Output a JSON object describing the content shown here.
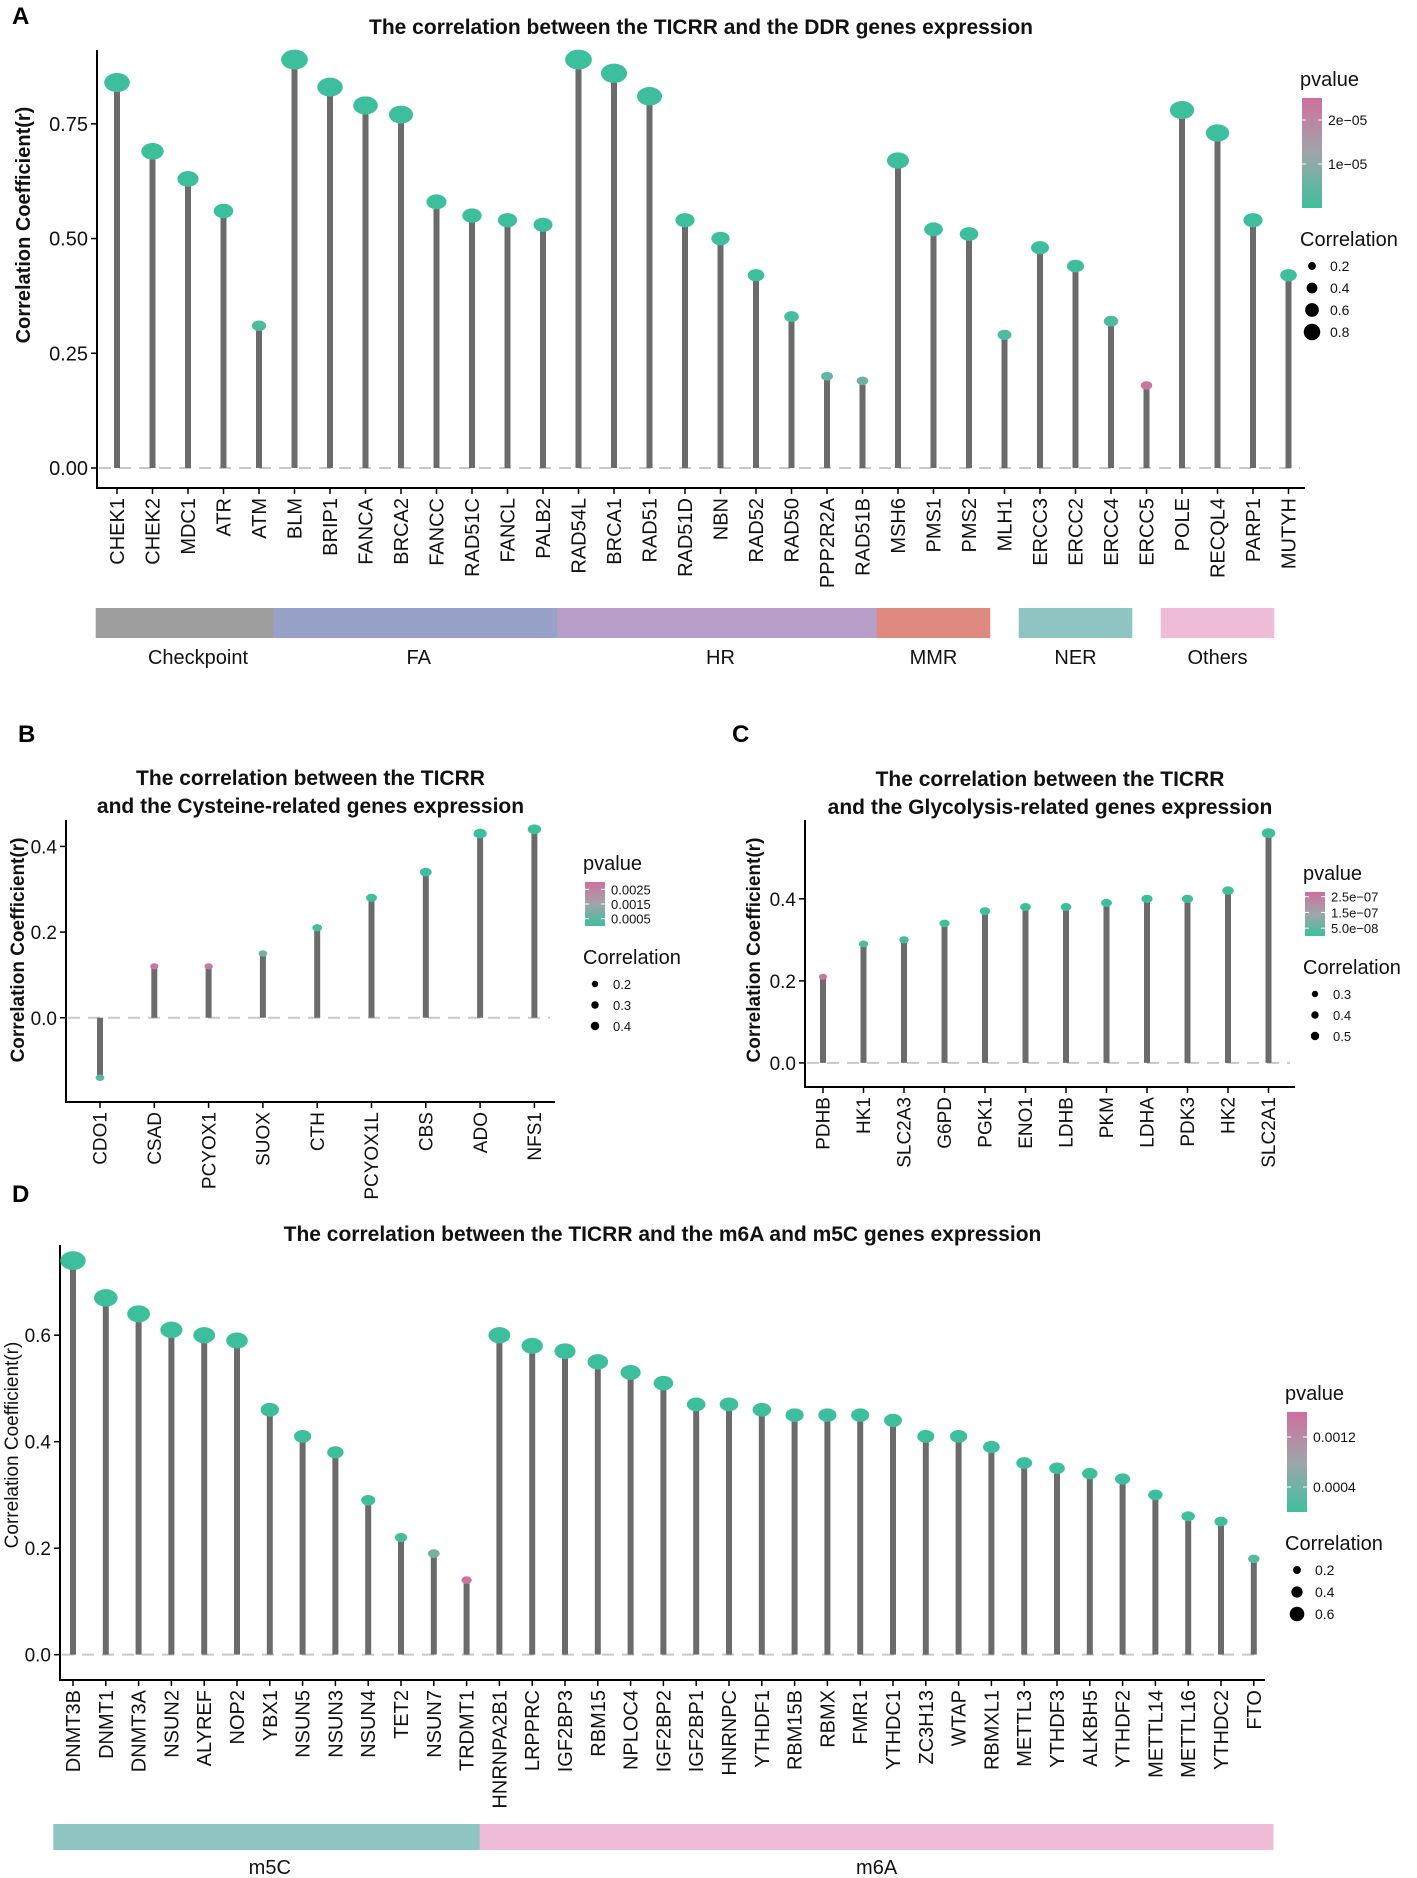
{
  "chart_data": [
    {
      "panel": "A",
      "type": "lollipop",
      "title": "The correlation between the TICRR and the DDR genes expression",
      "ylabel": "Correlation Coefficient(r)",
      "ylim": [
        0,
        0.9
      ],
      "yticks": [
        0,
        0.25,
        0.5,
        0.75
      ],
      "ytick_labels": [
        "0.00",
        "0.25",
        "0.50",
        "0.75"
      ],
      "categories": [
        "CHEK1",
        "CHEK2",
        "MDC1",
        "ATR",
        "ATM",
        "BLM",
        "BRIP1",
        "FANCA",
        "BRCA2",
        "FANCC",
        "RAD51C",
        "FANCL",
        "PALB2",
        "RAD54L",
        "BRCA1",
        "RAD51",
        "RAD51D",
        "NBN",
        "RAD52",
        "RAD50",
        "PPP2R2A",
        "RAD51B",
        "MSH6",
        "PMS1",
        "PMS2",
        "MLH1",
        "ERCC3",
        "ERCC2",
        "ERCC4",
        "ERCC5",
        "POLE",
        "RECQL4",
        "PARP1",
        "MUTYH"
      ],
      "values": [
        0.84,
        0.69,
        0.63,
        0.56,
        0.31,
        0.89,
        0.83,
        0.79,
        0.77,
        0.58,
        0.55,
        0.54,
        0.53,
        0.89,
        0.86,
        0.81,
        0.54,
        0.5,
        0.42,
        0.33,
        0.2,
        0.19,
        0.67,
        0.52,
        0.51,
        0.29,
        0.48,
        0.44,
        0.32,
        0.18,
        0.78,
        0.73,
        0.54,
        0.42
      ],
      "pvalue_scale": [
        0,
        2.5e-05
      ],
      "pvalues": [
        0,
        0,
        0,
        0,
        2e-06,
        0,
        0,
        0,
        0,
        0,
        0,
        0,
        0,
        0,
        0,
        0,
        0,
        0,
        0,
        1e-06,
        5e-06,
        6e-06,
        0,
        0,
        0,
        2e-06,
        0,
        0,
        2e-06,
        2.4e-05,
        0,
        0,
        0,
        0
      ],
      "legend": {
        "pvalue_title": "pvalue",
        "pvalue_ticks": [
          {
            "v": 2e-05,
            "label": "2e−05"
          },
          {
            "v": 1e-05,
            "label": "1e−05"
          }
        ],
        "size_title": "Correlation",
        "size_values": [
          0.2,
          0.4,
          0.6,
          0.8
        ],
        "size_labels": [
          "0.2",
          "0.4",
          "0.6",
          "0.8"
        ]
      },
      "groups": [
        {
          "name": "Checkpoint",
          "start": 0,
          "end": 4,
          "color": "#9e9e9e"
        },
        {
          "name": "FA",
          "start": 5,
          "end": 12,
          "color": "#98a1c8"
        },
        {
          "name": "HR",
          "start": 13,
          "end": 21,
          "color": "#b79ec8"
        },
        {
          "name": "MMR",
          "start": 22,
          "end": 24,
          "color": "#de8a7e"
        },
        {
          "name": "NER",
          "start": 26,
          "end": 28,
          "color": "#8ec4c2"
        },
        {
          "name": "Others",
          "start": 30,
          "end": 32,
          "color": "#efbcd8"
        }
      ]
    },
    {
      "panel": "B",
      "type": "lollipop",
      "title": "The correlation between the TICRR\nand the Cysteine-related genes expression",
      "ylabel": "Correlation Coefficient(r)",
      "ylim": [
        -0.15,
        0.45
      ],
      "yticks": [
        0,
        0.2,
        0.4
      ],
      "ytick_labels": [
        "0.0",
        "0.2",
        "0.4"
      ],
      "categories": [
        "CDO1",
        "CSAD",
        "PCYOX1",
        "SUOX",
        "CTH",
        "PCYOX1L",
        "CBS",
        "ADO",
        "NFS1"
      ],
      "values": [
        -0.14,
        0.12,
        0.12,
        0.15,
        0.21,
        0.28,
        0.34,
        0.43,
        0.44
      ],
      "pvalue_scale": [
        0,
        0.003
      ],
      "pvalues": [
        0.0004,
        0.0028,
        0.0027,
        0.0008,
        0.0001,
        0,
        0,
        0,
        0
      ],
      "legend": {
        "pvalue_title": "pvalue",
        "pvalue_ticks": [
          {
            "v": 0.0025,
            "label": "0.0025"
          },
          {
            "v": 0.0015,
            "label": "0.0015"
          },
          {
            "v": 0.0005,
            "label": "0.0005"
          }
        ],
        "size_title": "Correlation",
        "size_values": [
          0.2,
          0.3,
          0.4
        ],
        "size_labels": [
          "0.2",
          "0.3",
          "0.4"
        ]
      }
    },
    {
      "panel": "C",
      "type": "lollipop",
      "title": "The correlation between the TICRR\nand the Glycolysis-related genes expression",
      "ylabel": "Correlation Coefficient(r)",
      "ylim": [
        -0.01,
        0.58
      ],
      "yticks": [
        0,
        0.2,
        0.4
      ],
      "ytick_labels": [
        "0.0",
        "0.2",
        "0.4"
      ],
      "categories": [
        "PDHB",
        "HK1",
        "SLC2A3",
        "G6PD",
        "PGK1",
        "ENO1",
        "LDHB",
        "PKM",
        "LDHA",
        "PDK3",
        "HK2",
        "SLC2A1"
      ],
      "values": [
        0.21,
        0.29,
        0.3,
        0.34,
        0.37,
        0.38,
        0.38,
        0.39,
        0.4,
        0.4,
        0.42,
        0.56
      ],
      "pvalue_scale": [
        0,
        2.8e-07
      ],
      "pvalues": [
        2.7e-07,
        2e-08,
        1e-08,
        0,
        0,
        0,
        0,
        0,
        0,
        0,
        0,
        0
      ],
      "legend": {
        "pvalue_title": "pvalue",
        "pvalue_ticks": [
          {
            "v": 2.5e-07,
            "label": "2.5e−07"
          },
          {
            "v": 1.5e-07,
            "label": "1.5e−07"
          },
          {
            "v": 5e-08,
            "label": "5.0e−08"
          }
        ],
        "size_title": "Correlation",
        "size_values": [
          0.3,
          0.4,
          0.5
        ],
        "size_labels": [
          "0.3",
          "0.4",
          "0.5"
        ]
      }
    },
    {
      "panel": "D",
      "type": "lollipop",
      "title": "The correlation between the TICRR and the m6A and m5C genes expression",
      "ylabel": "Correlation Coefficient(r)",
      "ylim": [
        -0.01,
        0.76
      ],
      "yticks": [
        0,
        0.2,
        0.4,
        0.6
      ],
      "ytick_labels": [
        "0.0",
        "0.2",
        "0.4",
        "0.6"
      ],
      "categories": [
        "DNMT3B",
        "DNMT1",
        "DNMT3A",
        "NSUN2",
        "ALYREF",
        "NOP2",
        "YBX1",
        "NSUN5",
        "NSUN3",
        "NSUN4",
        "TET2",
        "NSUN7",
        "TRDMT1",
        "HNRNPA2B1",
        "LRPPRC",
        "IGF2BP3",
        "RBM15",
        "NPLOC4",
        "IGF2BP2",
        "IGF2BP1",
        "HNRNPC",
        "YTHDF1",
        "RBM15B",
        "RBMX",
        "FMR1",
        "YTHDC1",
        "ZC3H13",
        "WTAP",
        "RBMXL1",
        "METTL3",
        "YTHDF3",
        "ALKBH5",
        "YTHDF2",
        "METTL14",
        "METTL16",
        "YTHDC2",
        "FTO"
      ],
      "values": [
        0.74,
        0.67,
        0.64,
        0.61,
        0.6,
        0.59,
        0.46,
        0.41,
        0.38,
        0.29,
        0.22,
        0.19,
        0.14,
        0.6,
        0.58,
        0.57,
        0.55,
        0.53,
        0.51,
        0.47,
        0.47,
        0.46,
        0.45,
        0.45,
        0.45,
        0.44,
        0.41,
        0.41,
        0.39,
        0.36,
        0.35,
        0.34,
        0.33,
        0.3,
        0.26,
        0.25,
        0.18
      ],
      "pvalue_scale": [
        0,
        0.0016
      ],
      "pvalues": [
        0,
        0,
        0,
        0,
        0,
        0,
        0,
        0,
        0,
        1e-05,
        0.0001,
        0.0005,
        0.0015,
        0,
        0,
        0,
        0,
        0,
        0,
        0,
        0,
        0,
        0,
        0,
        0,
        0,
        0,
        0,
        0,
        0,
        0,
        0,
        0,
        0,
        1e-05,
        2e-05,
        0.0002
      ],
      "legend": {
        "pvalue_title": "pvalue",
        "pvalue_ticks": [
          {
            "v": 0.0012,
            "label": "0.0012"
          },
          {
            "v": 0.0004,
            "label": "0.0004"
          }
        ],
        "size_title": "Correlation",
        "size_values": [
          0.2,
          0.4,
          0.6
        ],
        "size_labels": [
          "0.2",
          "0.4",
          "0.6"
        ]
      },
      "groups": [
        {
          "name": "m5C",
          "start": 0,
          "end": 12,
          "color": "#8ec4c2"
        },
        {
          "name": "m6A",
          "start": 13,
          "end": 36,
          "color": "#efbcd8"
        }
      ]
    }
  ]
}
